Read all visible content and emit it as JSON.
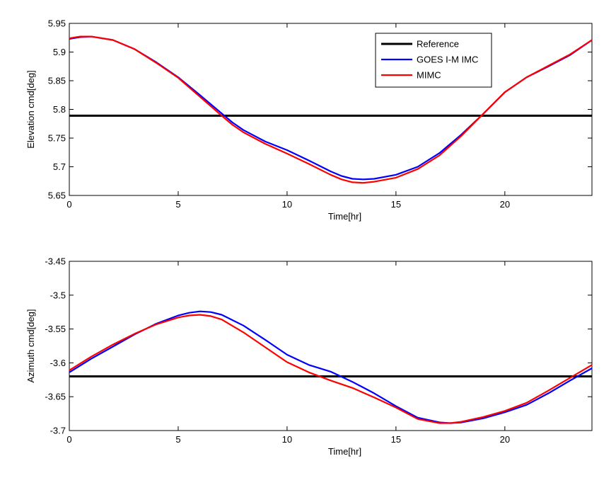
{
  "chart_data": [
    {
      "type": "line",
      "xlabel": "Time[hr]",
      "ylabel": "Elevation cmd[deg]",
      "xlim": [
        0,
        24
      ],
      "ylim": [
        5.65,
        5.95
      ],
      "xticks": [
        "0",
        "5",
        "10",
        "15",
        "20"
      ],
      "yticks": [
        "5.65",
        "5.7",
        "5.75",
        "5.8",
        "5.85",
        "5.9",
        "5.95"
      ],
      "legend": {
        "position": "top-right",
        "entries": [
          "Reference",
          "GOES I-M IMC",
          "MIMC"
        ]
      },
      "series": [
        {
          "name": "Reference",
          "color": "#000000",
          "x": [
            0,
            24
          ],
          "values": [
            5.789,
            5.789
          ]
        },
        {
          "name": "GOES I-M IMC",
          "color": "#0000ff",
          "x": [
            0,
            0.5,
            1,
            2,
            3,
            4,
            5,
            6,
            7,
            7.5,
            8,
            9,
            10,
            11,
            12,
            12.5,
            13,
            13.5,
            14,
            15,
            16,
            17,
            18,
            19,
            20,
            21,
            22,
            23,
            24
          ],
          "values": [
            5.923,
            5.926,
            5.927,
            5.921,
            5.905,
            5.882,
            5.856,
            5.825,
            5.793,
            5.777,
            5.764,
            5.744,
            5.729,
            5.711,
            5.692,
            5.684,
            5.679,
            5.678,
            5.679,
            5.686,
            5.7,
            5.724,
            5.756,
            5.792,
            5.83,
            5.856,
            5.875,
            5.895,
            5.921
          ]
        },
        {
          "name": "MIMC",
          "color": "#ff0000",
          "x": [
            0,
            0.5,
            1,
            2,
            3,
            4,
            5,
            6,
            7,
            7.5,
            8,
            9,
            10,
            11,
            12,
            12.5,
            13,
            13.5,
            14,
            15,
            16,
            17,
            18,
            19,
            20,
            21,
            22,
            23,
            24
          ],
          "values": [
            5.924,
            5.927,
            5.927,
            5.921,
            5.905,
            5.881,
            5.855,
            5.822,
            5.789,
            5.773,
            5.76,
            5.74,
            5.723,
            5.705,
            5.686,
            5.678,
            5.673,
            5.672,
            5.674,
            5.681,
            5.696,
            5.72,
            5.754,
            5.792,
            5.83,
            5.856,
            5.876,
            5.896,
            5.921
          ]
        }
      ]
    },
    {
      "type": "line",
      "xlabel": "Time[hr]",
      "ylabel": "Azimuth cmd[deg]",
      "xlim": [
        0,
        24
      ],
      "ylim": [
        -3.7,
        -3.45
      ],
      "xticks": [
        "0",
        "5",
        "10",
        "15",
        "20"
      ],
      "yticks": [
        "-3.7",
        "-3.65",
        "-3.6",
        "-3.55",
        "-3.5",
        "-3.45"
      ],
      "series": [
        {
          "name": "Reference",
          "color": "#000000",
          "x": [
            0,
            24
          ],
          "values": [
            -3.62,
            -3.62
          ]
        },
        {
          "name": "GOES I-M IMC",
          "color": "#0000ff",
          "x": [
            0,
            1,
            2,
            3,
            4,
            5,
            5.5,
            6,
            6.5,
            7,
            8,
            9,
            10,
            11,
            12,
            13,
            14,
            15,
            16,
            17,
            17.5,
            18,
            19,
            20,
            21,
            22,
            23,
            24
          ],
          "values": [
            -3.614,
            -3.594,
            -3.576,
            -3.558,
            -3.542,
            -3.53,
            -3.526,
            -3.524,
            -3.525,
            -3.529,
            -3.545,
            -3.566,
            -3.588,
            -3.603,
            -3.613,
            -3.628,
            -3.645,
            -3.664,
            -3.681,
            -3.688,
            -3.689,
            -3.688,
            -3.682,
            -3.673,
            -3.662,
            -3.645,
            -3.626,
            -3.608
          ]
        },
        {
          "name": "MIMC",
          "color": "#ff0000",
          "x": [
            0,
            1,
            2,
            3,
            4,
            5,
            5.5,
            6,
            6.5,
            7,
            8,
            9,
            10,
            11,
            12,
            13,
            14,
            15,
            16,
            17,
            17.5,
            18,
            19,
            20,
            21,
            22,
            23,
            24
          ],
          "values": [
            -3.611,
            -3.591,
            -3.573,
            -3.557,
            -3.543,
            -3.533,
            -3.53,
            -3.529,
            -3.531,
            -3.536,
            -3.555,
            -3.577,
            -3.599,
            -3.614,
            -3.626,
            -3.637,
            -3.651,
            -3.666,
            -3.683,
            -3.689,
            -3.689,
            -3.687,
            -3.68,
            -3.671,
            -3.659,
            -3.641,
            -3.622,
            -3.603
          ]
        }
      ]
    }
  ]
}
